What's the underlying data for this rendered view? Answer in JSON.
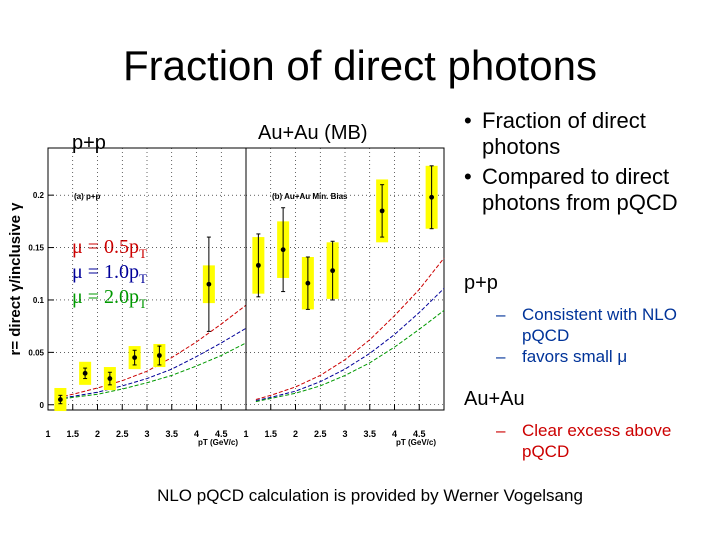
{
  "title": "Fraction of direct photons",
  "labels": {
    "pp": "p+p",
    "auau": "Au+Au (MB)"
  },
  "mu_legend": [
    {
      "prefix": "μ = 0.5p",
      "sub": "T",
      "color": "#cc0000"
    },
    {
      "prefix": "μ = 1.0p",
      "sub": "T",
      "color": "#000099"
    },
    {
      "prefix": "μ = 2.0p",
      "sub": "T",
      "color": "#009900"
    }
  ],
  "bullets": [
    "Fraction of direct photons",
    "Compared to direct photons from pQCD"
  ],
  "pp_section": {
    "heading": "p+p",
    "items": [
      "Consistent with NLO pQCD",
      "favors small μ"
    ]
  },
  "auau_section": {
    "heading": "Au+Au",
    "items": [
      "Clear excess above pQCD"
    ]
  },
  "footer": "NLO pQCD calculation is provided by Werner Vogelsang",
  "colors": {
    "excess": "#cc0000",
    "subitem": "#003399",
    "band": "#ffff00"
  },
  "chart_data": [
    {
      "type": "scatter",
      "title": "(a) p+p",
      "xlabel": "pT (GeV/c)",
      "ylabel": "r= direct γ/inclusive γ",
      "xlim": [
        1,
        5
      ],
      "ylim": [
        -0.005,
        0.245
      ],
      "xticks": [
        "1",
        "1.5",
        "2",
        "2.5",
        "3",
        "3.5",
        "4",
        "4.5"
      ],
      "yticks": [
        "0",
        "0.05",
        "0.1",
        "0.15",
        "0.2"
      ],
      "x": [
        1.25,
        1.75,
        2.25,
        2.75,
        3.25,
        4.25
      ],
      "y": [
        0.005,
        0.03,
        0.025,
        0.045,
        0.047,
        0.115
      ],
      "err": [
        0.004,
        0.005,
        0.006,
        0.007,
        0.009,
        0.045
      ],
      "sys": [
        0.011,
        0.011,
        0.011,
        0.011,
        0.011,
        0.018
      ],
      "curves": [
        {
          "name": "μ = 0.5pT",
          "x": [
            1.2,
            1.5,
            2,
            2.5,
            3,
            3.5,
            4,
            4.5,
            5
          ],
          "y": [
            0.007,
            0.01,
            0.016,
            0.023,
            0.032,
            0.045,
            0.06,
            0.077,
            0.095
          ]
        },
        {
          "name": "μ = 1.0pT",
          "x": [
            1.2,
            1.5,
            2,
            2.5,
            3,
            3.5,
            4,
            4.5,
            5
          ],
          "y": [
            0.006,
            0.008,
            0.012,
            0.018,
            0.025,
            0.034,
            0.046,
            0.059,
            0.073
          ]
        },
        {
          "name": "μ = 2.0pT",
          "x": [
            1.2,
            1.5,
            2,
            2.5,
            3,
            3.5,
            4,
            4.5,
            5
          ],
          "y": [
            0.005,
            0.007,
            0.01,
            0.015,
            0.021,
            0.028,
            0.037,
            0.047,
            0.059
          ]
        }
      ]
    },
    {
      "type": "scatter",
      "title": "(b) Au+Au Min. Bias",
      "xlabel": "pT (GeV/c)",
      "ylabel": "",
      "xlim": [
        1,
        5
      ],
      "ylim": [
        -0.005,
        0.245
      ],
      "xticks": [
        "1",
        "1.5",
        "2",
        "2.5",
        "3",
        "3.5",
        "4",
        "4.5"
      ],
      "yticks": [],
      "x": [
        1.25,
        1.75,
        2.25,
        2.75,
        3.75,
        4.75
      ],
      "y": [
        0.133,
        0.148,
        0.116,
        0.128,
        0.185,
        0.198
      ],
      "err": [
        0.03,
        0.04,
        0.025,
        0.028,
        0.025,
        0.03
      ],
      "sys": [
        0.027,
        0.027,
        0.025,
        0.027,
        0.03,
        0.03
      ],
      "curves": [
        {
          "name": "μ = 0.5pT",
          "x": [
            1.2,
            1.5,
            2,
            2.5,
            3,
            3.5,
            4,
            4.5,
            5
          ],
          "y": [
            0.005,
            0.009,
            0.017,
            0.028,
            0.043,
            0.062,
            0.085,
            0.11,
            0.14
          ]
        },
        {
          "name": "μ = 1.0pT",
          "x": [
            1.2,
            1.5,
            2,
            2.5,
            3,
            3.5,
            4,
            4.5,
            5
          ],
          "y": [
            0.004,
            0.007,
            0.013,
            0.022,
            0.034,
            0.049,
            0.067,
            0.088,
            0.111
          ]
        },
        {
          "name": "μ = 2.0pT",
          "x": [
            1.2,
            1.5,
            2,
            2.5,
            3,
            3.5,
            4,
            4.5,
            5
          ],
          "y": [
            0.003,
            0.006,
            0.011,
            0.018,
            0.028,
            0.04,
            0.055,
            0.072,
            0.09
          ]
        }
      ]
    }
  ]
}
